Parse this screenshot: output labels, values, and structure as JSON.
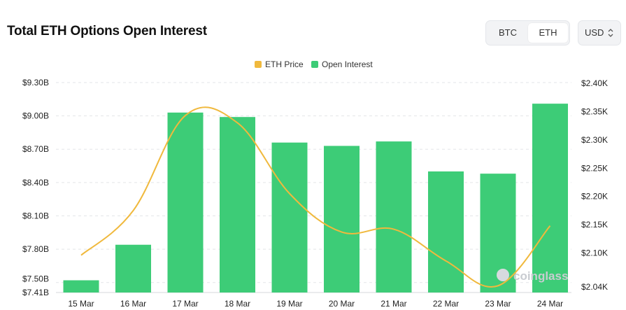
{
  "header": {
    "title": "Total ETH Options Open Interest",
    "asset_toggle": {
      "options": [
        "BTC",
        "ETH"
      ],
      "selected": "ETH"
    },
    "currency": {
      "value": "USD"
    }
  },
  "watermark": {
    "text": "coinglass"
  },
  "colors": {
    "bar": "#3dcc77",
    "line": "#f0b93d",
    "grid": "#e3e5e8"
  },
  "chart_data": {
    "type": "bar",
    "categories": [
      "15 Mar",
      "16 Mar",
      "17 Mar",
      "18 Mar",
      "19 Mar",
      "20 Mar",
      "21 Mar",
      "22 Mar",
      "23 Mar",
      "24 Mar"
    ],
    "series": [
      {
        "name": "Open Interest",
        "type": "bar",
        "axis": "left",
        "values": [
          7.52,
          7.84,
          9.03,
          8.99,
          8.76,
          8.73,
          8.77,
          8.5,
          8.48,
          9.11
        ]
      },
      {
        "name": "ETH Price",
        "type": "line",
        "axis": "right",
        "values": [
          2096,
          2175,
          2343,
          2330,
          2205,
          2137,
          2142,
          2086,
          2042,
          2148
        ]
      }
    ],
    "y_left": {
      "ticks": [
        "$7.41B",
        "$7.50B",
        "$7.80B",
        "$8.10B",
        "$8.40B",
        "$8.70B",
        "$9.00B",
        "$9.30B"
      ],
      "tick_values": [
        7.41,
        7.5,
        7.8,
        8.1,
        8.4,
        8.7,
        9.0,
        9.3
      ],
      "ylim": [
        7.41,
        9.3
      ]
    },
    "y_right": {
      "ticks": [
        "$2.04K",
        "$2.10K",
        "$2.15K",
        "$2.20K",
        "$2.25K",
        "$2.30K",
        "$2.35K",
        "$2.40K"
      ],
      "tick_values": [
        2040,
        2100,
        2150,
        2200,
        2250,
        2300,
        2350,
        2400
      ],
      "ylim": [
        2030,
        2400
      ]
    },
    "legend": {
      "position": "top-center",
      "items": [
        "ETH Price",
        "Open Interest"
      ]
    },
    "grid": true
  }
}
